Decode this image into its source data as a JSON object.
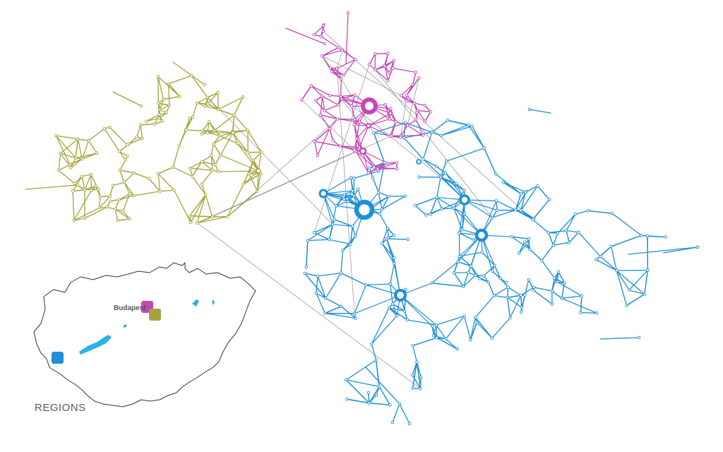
{
  "legend": {
    "title": "REGIONS",
    "city_label": "Budapest"
  },
  "colors": {
    "olive": "#a3a33f",
    "magenta": "#c447b6",
    "blue": "#1f8fd6",
    "bridge": "#9a9a9a",
    "map_outline": "#333333",
    "lake": "#29b2e8",
    "node_fill": "#ffffff"
  },
  "regions": [
    {
      "id": "olive",
      "color": "#a3a33f"
    },
    {
      "id": "magenta",
      "color": "#c447b6"
    },
    {
      "id": "blue",
      "color": "#1f8fd6"
    }
  ]
}
